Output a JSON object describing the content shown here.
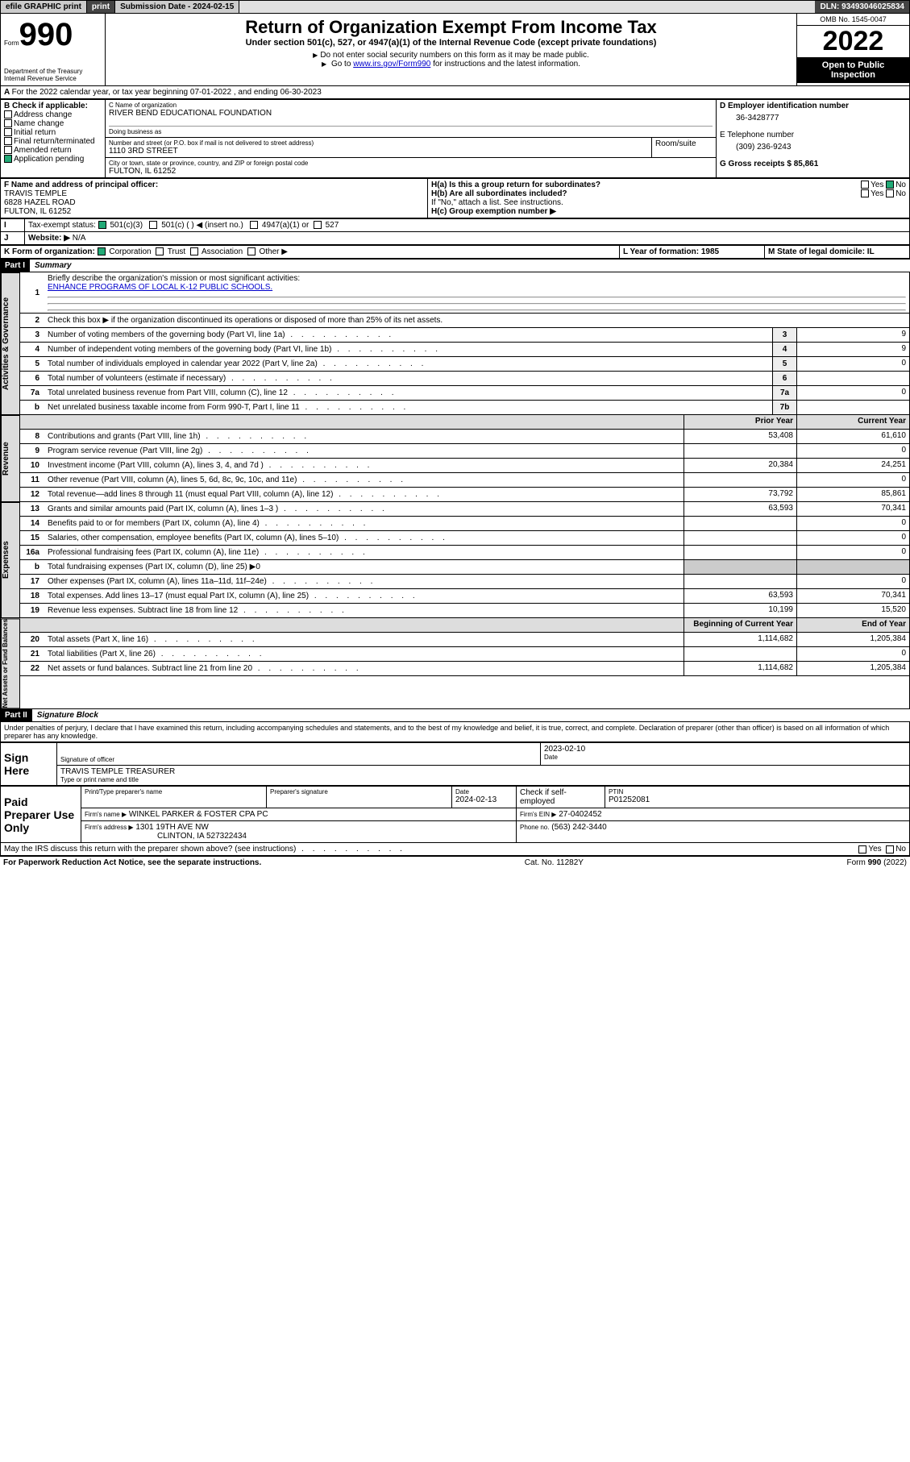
{
  "top": {
    "efile": "efile GRAPHIC print",
    "sub_label": "Submission Date - 2024-02-15",
    "dln": "DLN: 93493046025834"
  },
  "hdr": {
    "form_word": "Form",
    "form_num": "990",
    "title": "Return of Organization Exempt From Income Tax",
    "sub": "Under section 501(c), 527, or 4947(a)(1) of the Internal Revenue Code (except private foundations)",
    "warn": "Do not enter social security numbers on this form as it may be made public.",
    "goto_pre": "Go to ",
    "goto_link": "www.irs.gov/Form990",
    "goto_post": " for instructions and the latest information.",
    "dept": "Department of the Treasury Internal Revenue Service",
    "omb": "OMB No. 1545-0047",
    "year": "2022",
    "open": "Open to Public Inspection"
  },
  "a": {
    "line": "For the 2022 calendar year, or tax year beginning 07-01-2022   , and ending 06-30-2023",
    "b_label": "B Check if applicable:",
    "b_items": [
      "Address change",
      "Name change",
      "Initial return",
      "Final return/terminated",
      "Amended return",
      "Application pending"
    ],
    "c_label": "C Name of organization",
    "c_name": "RIVER BEND EDUCATIONAL FOUNDATION",
    "dba": "Doing business as",
    "addr_label": "Number and street (or P.O. box if mail is not delivered to street address)",
    "addr": "1110 3RD STREET",
    "room": "Room/suite",
    "city_label": "City or town, state or province, country, and ZIP or foreign postal code",
    "city": "FULTON, IL  61252",
    "d_label": "D Employer identification number",
    "d_val": "36-3428777",
    "e_label": "E Telephone number",
    "e_val": "(309) 236-9243",
    "g_label": "G Gross receipts $ 85,861",
    "f_label": "F  Name and address of principal officer:",
    "f_name": "TRAVIS TEMPLE",
    "f_addr1": "6828 HAZEL ROAD",
    "f_addr2": "FULTON, IL  61252",
    "h_a": "H(a)  Is this a group return for subordinates?",
    "h_b": "H(b)  Are all subordinates included?",
    "h_note": "If \"No,\" attach a list. See instructions.",
    "h_c": "H(c)  Group exemption number ▶",
    "yes": "Yes",
    "no": "No",
    "i_label": "Tax-exempt status:",
    "i_501c3": "501(c)(3)",
    "i_501c": "501(c) (  ) ◀ (insert no.)",
    "i_4947": "4947(a)(1) or",
    "i_527": "527",
    "j_label": "Website: ▶",
    "j_val": "N/A",
    "k_label": "K Form of organization:",
    "k_corp": "Corporation",
    "k_trust": "Trust",
    "k_assoc": "Association",
    "k_other": "Other ▶",
    "l_label": "L Year of formation: 1985",
    "m_label": "M State of legal domicile: IL"
  },
  "p1": {
    "part": "Part I",
    "title": "Summary",
    "l1": "Briefly describe the organization's mission or most significant activities:",
    "l1v": "ENHANCE PROGRAMS OF LOCAL K-12 PUBLIC SCHOOLS.",
    "l2": "Check this box ▶       if the organization discontinued its operations or disposed of more than 25% of its net assets.",
    "rows_gov": [
      {
        "n": "3",
        "t": "Number of voting members of the governing body (Part VI, line 1a)",
        "b": "3",
        "v": "9"
      },
      {
        "n": "4",
        "t": "Number of independent voting members of the governing body (Part VI, line 1b)",
        "b": "4",
        "v": "9"
      },
      {
        "n": "5",
        "t": "Total number of individuals employed in calendar year 2022 (Part V, line 2a)",
        "b": "5",
        "v": "0"
      },
      {
        "n": "6",
        "t": "Total number of volunteers (estimate if necessary)",
        "b": "6",
        "v": ""
      },
      {
        "n": "7a",
        "t": "Total unrelated business revenue from Part VIII, column (C), line 12",
        "b": "7a",
        "v": "0"
      },
      {
        "n": "b",
        "t": "Net unrelated business taxable income from Form 990-T, Part I, line 11",
        "b": "7b",
        "v": ""
      }
    ],
    "col_prior": "Prior Year",
    "col_curr": "Current Year",
    "rows_rev": [
      {
        "n": "8",
        "t": "Contributions and grants (Part VIII, line 1h)",
        "p": "53,408",
        "c": "61,610"
      },
      {
        "n": "9",
        "t": "Program service revenue (Part VIII, line 2g)",
        "p": "",
        "c": "0"
      },
      {
        "n": "10",
        "t": "Investment income (Part VIII, column (A), lines 3, 4, and 7d )",
        "p": "20,384",
        "c": "24,251"
      },
      {
        "n": "11",
        "t": "Other revenue (Part VIII, column (A), lines 5, 6d, 8c, 9c, 10c, and 11e)",
        "p": "",
        "c": "0"
      },
      {
        "n": "12",
        "t": "Total revenue—add lines 8 through 11 (must equal Part VIII, column (A), line 12)",
        "p": "73,792",
        "c": "85,861"
      }
    ],
    "rows_exp": [
      {
        "n": "13",
        "t": "Grants and similar amounts paid (Part IX, column (A), lines 1–3 )",
        "p": "63,593",
        "c": "70,341"
      },
      {
        "n": "14",
        "t": "Benefits paid to or for members (Part IX, column (A), line 4)",
        "p": "",
        "c": "0"
      },
      {
        "n": "15",
        "t": "Salaries, other compensation, employee benefits (Part IX, column (A), lines 5–10)",
        "p": "",
        "c": "0"
      },
      {
        "n": "16a",
        "t": "Professional fundraising fees (Part IX, column (A), line 11e)",
        "p": "",
        "c": "0"
      },
      {
        "n": "b",
        "t": "Total fundraising expenses (Part IX, column (D), line 25) ▶0",
        "p": null,
        "c": null
      },
      {
        "n": "17",
        "t": "Other expenses (Part IX, column (A), lines 11a–11d, 11f–24e)",
        "p": "",
        "c": "0"
      },
      {
        "n": "18",
        "t": "Total expenses. Add lines 13–17 (must equal Part IX, column (A), line 25)",
        "p": "63,593",
        "c": "70,341"
      },
      {
        "n": "19",
        "t": "Revenue less expenses. Subtract line 18 from line 12",
        "p": "10,199",
        "c": "15,520"
      }
    ],
    "col_begin": "Beginning of Current Year",
    "col_end": "End of Year",
    "rows_net": [
      {
        "n": "20",
        "t": "Total assets (Part X, line 16)",
        "p": "1,114,682",
        "c": "1,205,384"
      },
      {
        "n": "21",
        "t": "Total liabilities (Part X, line 26)",
        "p": "",
        "c": "0"
      },
      {
        "n": "22",
        "t": "Net assets or fund balances. Subtract line 21 from line 20",
        "p": "1,114,682",
        "c": "1,205,384"
      }
    ],
    "side_gov": "Activities & Governance",
    "side_rev": "Revenue",
    "side_exp": "Expenses",
    "side_net": "Net Assets or Fund Balances"
  },
  "p2": {
    "part": "Part II",
    "title": "Signature Block",
    "decl": "Under penalties of perjury, I declare that I have examined this return, including accompanying schedules and statements, and to the best of my knowledge and belief, it is true, correct, and complete. Declaration of preparer (other than officer) is based on all information of which preparer has any knowledge.",
    "sign_here": "Sign Here",
    "sig_officer": "Signature of officer",
    "sig_date": "Date",
    "sig_date_v": "2023-02-10",
    "sig_name": "TRAVIS TEMPLE TREASURER",
    "sig_type": "Type or print name and title",
    "paid": "Paid Preparer Use Only",
    "prep_name_l": "Print/Type preparer's name",
    "prep_sig_l": "Preparer's signature",
    "prep_date_l": "Date",
    "prep_date_v": "2024-02-13",
    "prep_check": "Check        if self-employed",
    "ptin_l": "PTIN",
    "ptin_v": "P01252081",
    "firm_name_l": "Firm's name    ▶",
    "firm_name_v": "WINKEL PARKER & FOSTER CPA PC",
    "firm_ein_l": "Firm's EIN ▶",
    "firm_ein_v": "27-0402452",
    "firm_addr_l": "Firm's address ▶",
    "firm_addr_v1": "1301 19TH AVE NW",
    "firm_addr_v2": "CLINTON, IA  527322434",
    "phone_l": "Phone no.",
    "phone_v": "(563) 242-3440",
    "may": "May the IRS discuss this return with the preparer shown above? (see instructions)"
  },
  "footer": {
    "pra": "For Paperwork Reduction Act Notice, see the separate instructions.",
    "cat": "Cat. No. 11282Y",
    "form": "Form 990 (2022)"
  }
}
